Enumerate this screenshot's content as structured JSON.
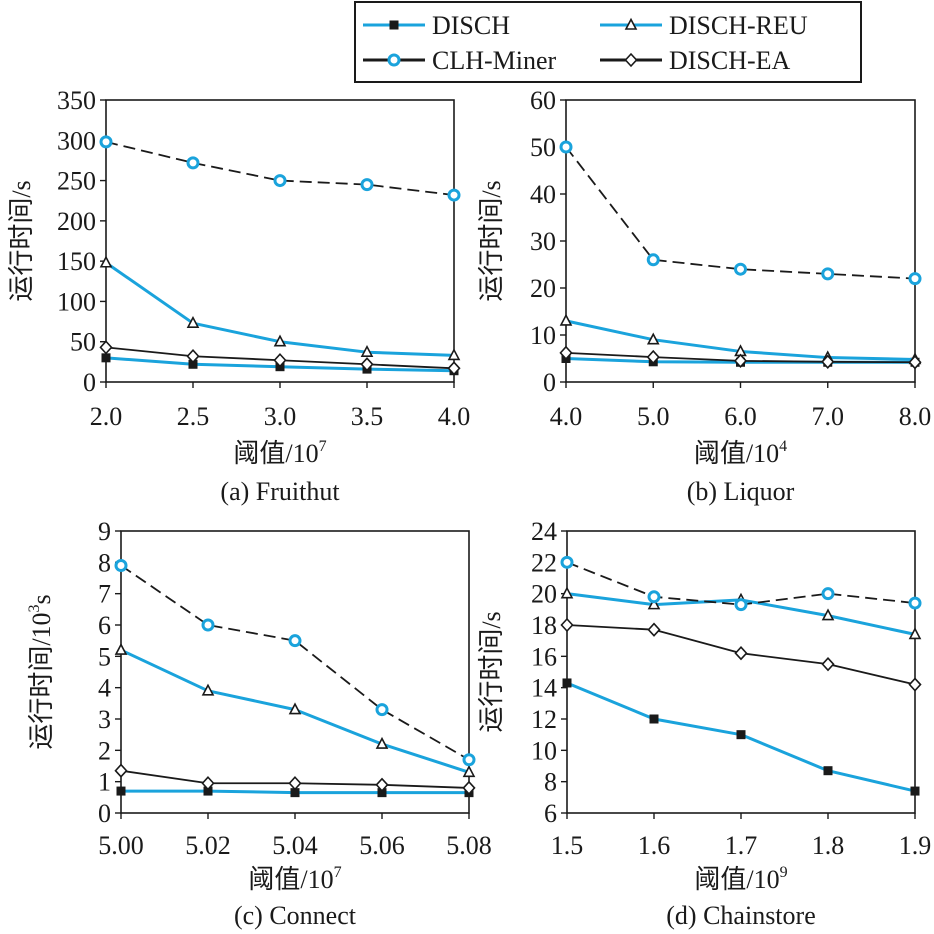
{
  "legend": {
    "entries": [
      {
        "name": "DISCH",
        "series_key": "DISCH"
      },
      {
        "name": "DISCH-REU",
        "series_key": "DISCH-REU"
      },
      {
        "name": "CLH-Miner",
        "series_key": "CLH-Miner"
      },
      {
        "name": "DISCH-EA",
        "series_key": "DISCH-EA"
      }
    ]
  },
  "series_styles": {
    "DISCH": {
      "color": "#1aa3dc",
      "marker": "square",
      "marker_color": "#1a1a1a",
      "dash": "solid"
    },
    "DISCH-REU": {
      "color": "#1aa3dc",
      "marker": "triangle",
      "marker_color": "#1a1a1a",
      "dash": "solid"
    },
    "CLH-Miner": {
      "color": "#1a1a1a",
      "marker": "circle",
      "marker_color": "#1aa3dc",
      "dash": "dashed"
    },
    "DISCH-EA": {
      "color": "#1a1a1a",
      "marker": "diamond",
      "marker_color": "#1a1a1a",
      "dash": "solid"
    }
  },
  "chart_data": [
    {
      "type": "line",
      "caption": "(a) Fruithut",
      "xlabel": "阈值/10",
      "xlabel_exp": "7",
      "ylabel": "运行时间/s",
      "x": [
        "2.0",
        "2.5",
        "3.0",
        "3.5",
        "4.0"
      ],
      "ylim": [
        0,
        350
      ],
      "yticks": [
        "0",
        "50",
        "100",
        "150",
        "200",
        "250",
        "300",
        "350"
      ],
      "grid": false,
      "series": [
        {
          "name": "DISCH",
          "values": [
            30,
            22,
            19,
            16,
            14
          ]
        },
        {
          "name": "DISCH-REU",
          "values": [
            148,
            73,
            50,
            37,
            33
          ]
        },
        {
          "name": "CLH-Miner",
          "values": [
            298,
            272,
            250,
            245,
            232
          ]
        },
        {
          "name": "DISCH-EA",
          "values": [
            43,
            32,
            27,
            22,
            17
          ]
        }
      ]
    },
    {
      "type": "line",
      "caption": "(b) Liquor",
      "xlabel": "阈值/10",
      "xlabel_exp": "4",
      "ylabel": "运行时间/s",
      "x": [
        "4.0",
        "5.0",
        "6.0",
        "7.0",
        "8.0"
      ],
      "ylim": [
        0,
        60
      ],
      "yticks": [
        "0",
        "10",
        "20",
        "30",
        "40",
        "50",
        "60"
      ],
      "grid": false,
      "series": [
        {
          "name": "DISCH",
          "values": [
            5,
            4.3,
            4.2,
            4.2,
            4.2
          ]
        },
        {
          "name": "DISCH-REU",
          "values": [
            13,
            9,
            6.5,
            5.2,
            4.8
          ]
        },
        {
          "name": "CLH-Miner",
          "values": [
            50,
            26,
            24,
            23,
            22
          ]
        },
        {
          "name": "DISCH-EA",
          "values": [
            6.2,
            5.3,
            4.5,
            4.3,
            4.2
          ]
        }
      ]
    },
    {
      "type": "line",
      "caption": "(c) Connect",
      "xlabel": "阈值/10",
      "xlabel_exp": "7",
      "ylabel": "运行时间/10",
      "ylabel_exp": "3",
      "ylabel_suffix": "s",
      "x": [
        "5.00",
        "5.02",
        "5.04",
        "5.06",
        "5.08"
      ],
      "ylim": [
        0,
        9
      ],
      "yticks": [
        "0",
        "1",
        "2",
        "3",
        "4",
        "5",
        "6",
        "7",
        "8",
        "9"
      ],
      "grid": false,
      "series": [
        {
          "name": "DISCH",
          "values": [
            0.7,
            0.7,
            0.65,
            0.65,
            0.65
          ]
        },
        {
          "name": "DISCH-REU",
          "values": [
            5.2,
            3.9,
            3.3,
            2.2,
            1.3
          ]
        },
        {
          "name": "CLH-Miner",
          "values": [
            7.9,
            6.0,
            5.5,
            3.3,
            1.7
          ]
        },
        {
          "name": "DISCH-EA",
          "values": [
            1.35,
            0.95,
            0.95,
            0.9,
            0.8
          ]
        }
      ]
    },
    {
      "type": "line",
      "caption": "(d) Chainstore",
      "xlabel": "阈值/10",
      "xlabel_exp": "9",
      "ylabel": "运行时间/s",
      "x": [
        "1.5",
        "1.6",
        "1.7",
        "1.8",
        "1.9"
      ],
      "ylim": [
        6,
        24
      ],
      "yticks": [
        "6",
        "8",
        "10",
        "12",
        "14",
        "16",
        "18",
        "20",
        "22",
        "24"
      ],
      "grid": false,
      "series": [
        {
          "name": "DISCH",
          "values": [
            14.3,
            12.0,
            11.0,
            8.7,
            7.4
          ]
        },
        {
          "name": "DISCH-REU",
          "values": [
            20.0,
            19.3,
            19.6,
            18.6,
            17.4
          ]
        },
        {
          "name": "CLH-Miner",
          "values": [
            22.0,
            19.8,
            19.3,
            20.0,
            19.4
          ]
        },
        {
          "name": "DISCH-EA",
          "values": [
            18.0,
            17.7,
            16.2,
            15.5,
            14.2
          ]
        }
      ]
    }
  ]
}
